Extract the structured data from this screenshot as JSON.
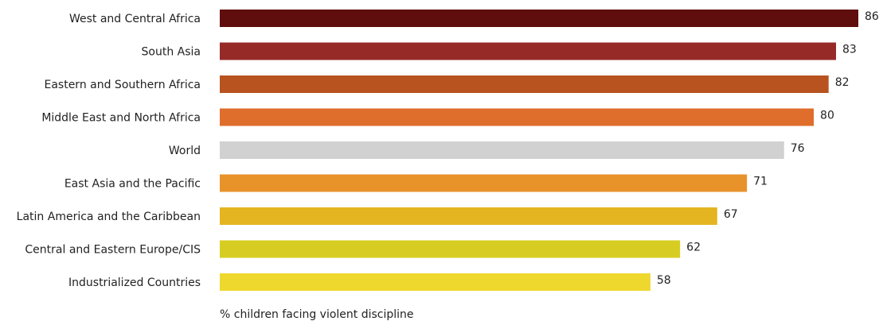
{
  "chart_data": {
    "type": "bar",
    "orientation": "horizontal",
    "categories": [
      "West and Central Africa",
      "South Asia",
      "Eastern and Southern Africa",
      "Middle East and North Africa",
      "World",
      "East Asia and the Pacific",
      "Latin America and the Caribbean",
      "Central and Eastern Europe/CIS",
      "Industrialized Countries"
    ],
    "values": [
      86,
      83,
      82,
      80,
      76,
      71,
      67,
      62,
      58
    ],
    "colors": [
      "#600d0d",
      "#952a27",
      "#b8521e",
      "#df6d2b",
      "#d1d1d1",
      "#e8922a",
      "#e4b421",
      "#d7cd22",
      "#efd82e"
    ],
    "xlabel": "% children facing violent discipline",
    "xlim": [
      0,
      86
    ],
    "grid": false,
    "legend": "none"
  }
}
